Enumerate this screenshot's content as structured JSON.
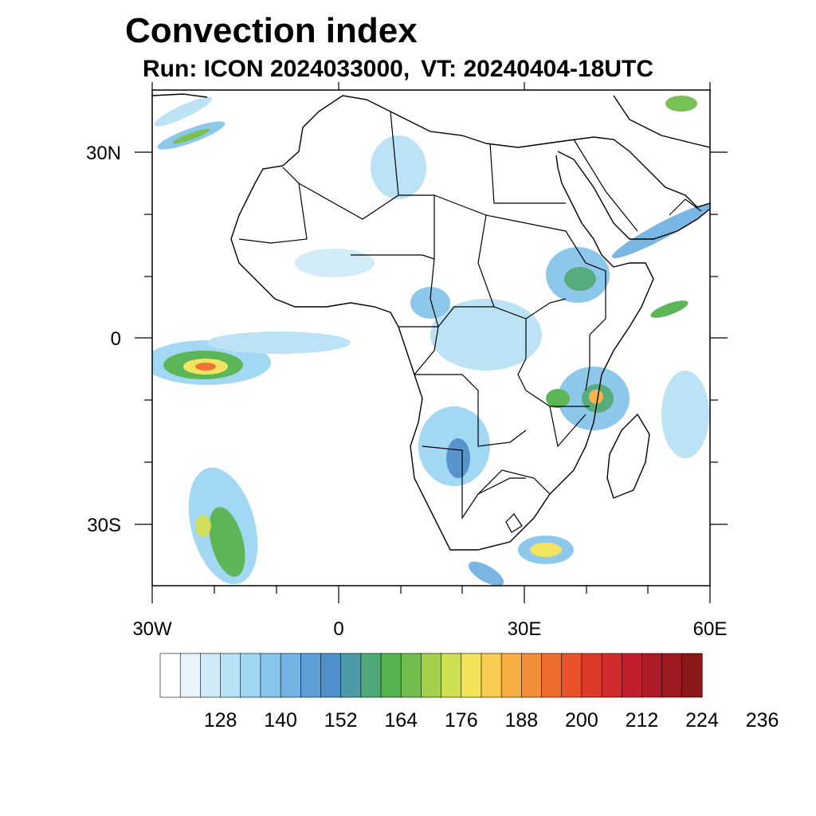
{
  "title": "Convection index",
  "subtitle": {
    "run": "Run: ICON 2024033000,",
    "vt": "VT: 20240404-18UTC"
  },
  "map": {
    "extent": {
      "lon": [
        -30,
        60
      ],
      "lat": [
        -40,
        40
      ]
    },
    "lat_labels": [
      {
        "lat": 30,
        "text": "30N"
      },
      {
        "lat": 0,
        "text": "0"
      },
      {
        "lat": -30,
        "text": "30S"
      }
    ],
    "lon_labels": [
      {
        "lon": -30,
        "text": "30W"
      },
      {
        "lon": 0,
        "text": "0"
      },
      {
        "lon": 30,
        "text": "30E"
      },
      {
        "lon": 60,
        "text": "60E"
      }
    ]
  },
  "colorbar": {
    "colors": [
      "#ffffff",
      "#e8f4fb",
      "#d0ebf8",
      "#b8e1f5",
      "#9ed6f3",
      "#87c6ea",
      "#72b3e3",
      "#5b9fd6",
      "#4f8fca",
      "#4b9aa7",
      "#4ea877",
      "#54b24f",
      "#72bd4c",
      "#a6cf4c",
      "#cfdf52",
      "#f1e35a",
      "#f9cc52",
      "#f6b042",
      "#f28e35",
      "#ee6d2c",
      "#e9522a",
      "#de3a2a",
      "#d02a2c",
      "#c11f2c",
      "#ae1a26",
      "#9c1a20",
      "#8a1819"
    ],
    "labels": [
      "128",
      "140",
      "152",
      "164",
      "176",
      "188",
      "200",
      "212",
      "224",
      "236"
    ]
  }
}
